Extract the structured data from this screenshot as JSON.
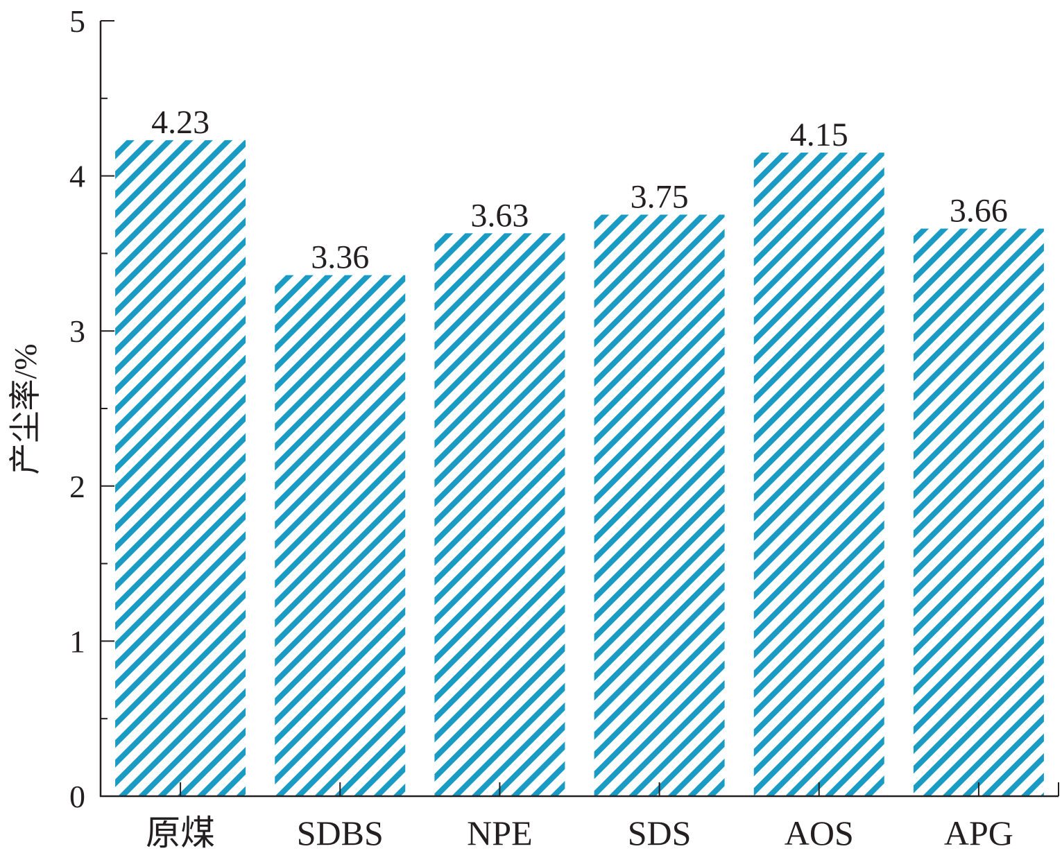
{
  "chart_data": {
    "type": "bar",
    "categories": [
      "原煤",
      "SDBS",
      "NPE",
      "SDS",
      "AOS",
      "APG"
    ],
    "values": [
      4.23,
      3.36,
      3.63,
      3.75,
      4.15,
      3.66
    ],
    "data_labels": [
      "4.23",
      "3.36",
      "3.63",
      "3.75",
      "4.15",
      "3.66"
    ],
    "title": "",
    "xlabel": "",
    "ylabel": "产尘率/%",
    "ylim": [
      0,
      5
    ],
    "yticks": [
      0,
      1,
      2,
      3,
      4,
      5
    ],
    "ytick_labels": [
      "0",
      "1",
      "2",
      "3",
      "4",
      "5"
    ],
    "grid": false,
    "bar_pattern": "diagonal-hatch",
    "colors": {
      "bar_hatch": "#1a9bc4",
      "axis": "#231f20",
      "text": "#231f20"
    }
  }
}
